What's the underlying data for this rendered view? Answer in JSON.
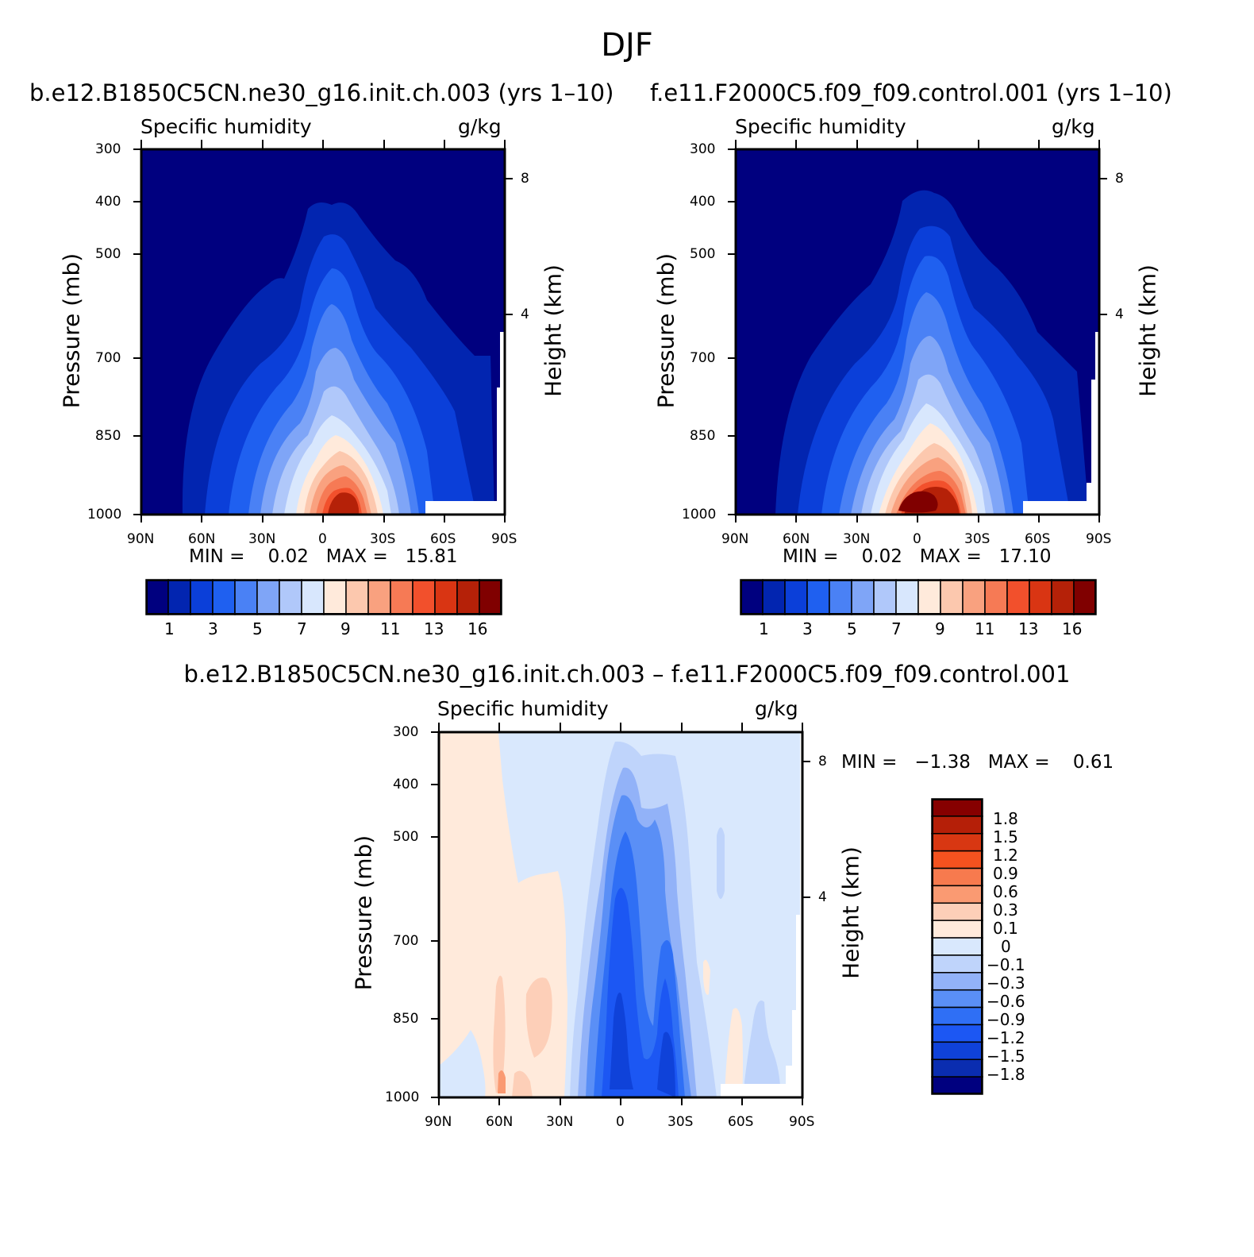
{
  "figure_title": "DJF",
  "colors": {
    "abs_palette": [
      "#00007f",
      "#0225b0",
      "#0b3fd9",
      "#1f60f0",
      "#4a81f5",
      "#7fa5f7",
      "#b0c8fa",
      "#d8e7fd",
      "#ffeadb",
      "#fcc8ae",
      "#f9a17f",
      "#f67a55",
      "#f2502c",
      "#d93513",
      "#b52108",
      "#800000"
    ],
    "diff_palette": [
      "#00007f",
      "#0a2db0",
      "#0f42d9",
      "#1c57f3",
      "#2f6ff5",
      "#5a8ff6",
      "#92b2f8",
      "#bfd4fb",
      "#d9e8fd",
      "#ffeadb",
      "#fdcfb8",
      "#fa9a72",
      "#f77a4e",
      "#f4521f",
      "#d83712",
      "#b51f08",
      "#860000"
    ]
  },
  "panels": {
    "left": {
      "title": "b.e12.B1850C5CN.ne30_g16.init.ch.003 (yrs 1–10)",
      "variable": "Specific humidity",
      "units": "g/kg",
      "min_max": "MIN =    0.02   MAX =   15.81"
    },
    "right": {
      "title": "f.e11.F2000C5.f09_f09.control.001 (yrs 1–10)",
      "variable": "Specific humidity",
      "units": "g/kg",
      "min_max": "MIN =    0.02   MAX =   17.10"
    },
    "diff": {
      "title": "b.e12.B1850C5CN.ne30_g16.init.ch.003 – f.e11.F2000C5.f09_f09.control.001",
      "variable": "Specific humidity",
      "units": "g/kg",
      "min_max": "MIN =   −1.38   MAX =    0.61"
    }
  },
  "axes": {
    "y_title": "Pressure (mb)",
    "y2_title": "Height (km)",
    "pressure_ticks": [
      "300",
      "400",
      "500",
      "700",
      "850",
      "1000"
    ],
    "height_ticks": [
      "8",
      "4"
    ],
    "lat_ticks": [
      "90N",
      "60N",
      "30N",
      "0",
      "30S",
      "60S",
      "90S"
    ]
  },
  "colorbars": {
    "abs_labels": [
      "1",
      "3",
      "5",
      "7",
      "9",
      "11",
      "13",
      "16"
    ],
    "diff_labels": [
      "1.8",
      "1.5",
      "1.2",
      "0.9",
      "0.6",
      "0.3",
      "0.1",
      "0",
      "−0.1",
      "−0.3",
      "−0.6",
      "−0.9",
      "−1.2",
      "−1.5",
      "−1.8"
    ]
  },
  "chart_data": [
    {
      "type": "heatmap",
      "title": "b.e12.B1850C5CN.ne30_g16.init.ch.003 (yrs 1–10)",
      "variable": "Specific humidity",
      "units": "g/kg",
      "xlabel": "",
      "ylabel": "Pressure (mb)",
      "y2label": "Height (km)",
      "x_range": [
        "90N",
        "90S"
      ],
      "y_range_mb": [
        300,
        1000
      ],
      "min": 0.02,
      "max": 15.81,
      "contour_levels": [
        1,
        2,
        3,
        4,
        5,
        6,
        7,
        8,
        9,
        10,
        11,
        12,
        13,
        14,
        16
      ],
      "peak": {
        "lat": "~5S",
        "pressure_mb": 1000,
        "value_range": "14-16"
      }
    },
    {
      "type": "heatmap",
      "title": "f.e11.F2000C5.f09_f09.control.001 (yrs 1–10)",
      "variable": "Specific humidity",
      "units": "g/kg",
      "xlabel": "",
      "ylabel": "Pressure (mb)",
      "y2label": "Height (km)",
      "x_range": [
        "90N",
        "90S"
      ],
      "y_range_mb": [
        300,
        1000
      ],
      "min": 0.02,
      "max": 17.1,
      "contour_levels": [
        1,
        2,
        3,
        4,
        5,
        6,
        7,
        8,
        9,
        10,
        11,
        12,
        13,
        14,
        16
      ],
      "peak": {
        "lat": "~0",
        "pressure_mb": 1000,
        "value_range": ">16"
      }
    },
    {
      "type": "heatmap",
      "title": "b.e12.B1850C5CN.ne30_g16.init.ch.003 – f.e11.F2000C5.f09_f09.control.001",
      "variable": "Specific humidity",
      "units": "g/kg",
      "xlabel": "",
      "ylabel": "Pressure (mb)",
      "y2label": "Height (km)",
      "x_range": [
        "90N",
        "90S"
      ],
      "y_range_mb": [
        300,
        1000
      ],
      "min": -1.38,
      "max": 0.61,
      "contour_levels": [
        -1.8,
        -1.5,
        -1.2,
        -0.9,
        -0.6,
        -0.3,
        -0.1,
        0,
        0.1,
        0.3,
        0.6,
        0.9,
        1.2,
        1.5,
        1.8
      ]
    }
  ]
}
